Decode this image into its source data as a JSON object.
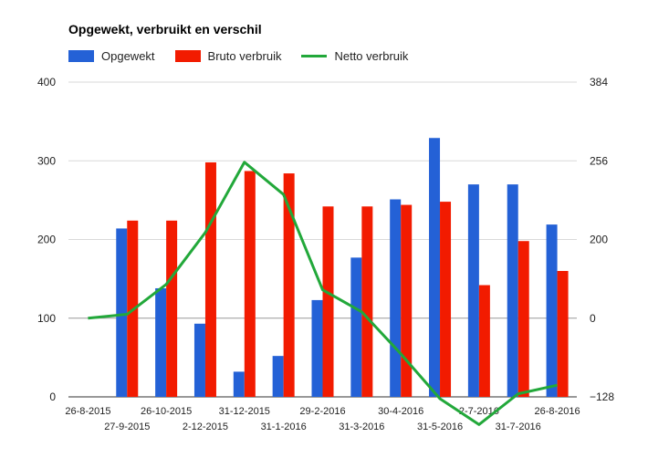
{
  "chart_data": {
    "type": "bar",
    "title": "Opgewekt, verbruikt en verschil",
    "categories": [
      "26-8-2015",
      "27-9-2015",
      "26-10-2015",
      "2-12-2015",
      "31-12-2015",
      "31-1-2016",
      "29-2-2016",
      "31-3-2016",
      "30-4-2016",
      "31-5-2016",
      "2-7-2016",
      "31-7-2016",
      "26-8-2016"
    ],
    "series": [
      {
        "name": "Opgewekt",
        "color": "#2461d6",
        "axis": "left",
        "values": [
          null,
          214,
          138,
          93,
          32,
          52,
          123,
          177,
          251,
          329,
          270,
          270,
          219
        ]
      },
      {
        "name": "Bruto verbruik",
        "color": "#f21b00",
        "axis": "left",
        "values": [
          null,
          224,
          224,
          298,
          287,
          284,
          242,
          242,
          244,
          248,
          142,
          198,
          160
        ]
      },
      {
        "name": "Netto verbruik",
        "color": "#22a83a",
        "axis": "right",
        "type": "line",
        "values": [
          0,
          10,
          86,
          205,
          255,
          232,
          72,
          16,
          -58,
          -131,
          -173,
          -123,
          -109
        ]
      }
    ],
    "y_left": {
      "ylim": [
        0,
        400
      ],
      "ticks": [
        "0",
        "100",
        "200",
        "300",
        "400"
      ]
    },
    "y_right": {
      "ylim": [
        -128,
        384
      ],
      "ticks": [
        "−128",
        "0",
        "200",
        "256",
        "384"
      ]
    },
    "grid": true,
    "legend_position": "top-left"
  }
}
